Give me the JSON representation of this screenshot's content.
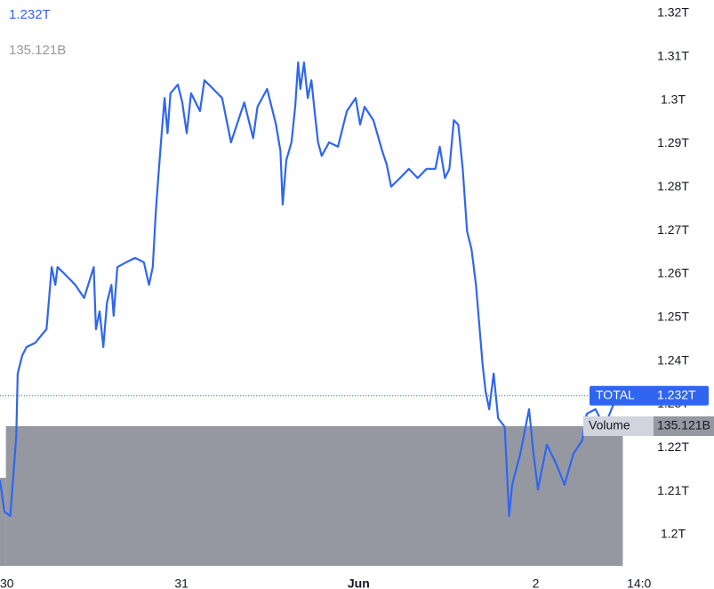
{
  "chart_data": {
    "type": "line",
    "xlim": [
      -0.6,
      87
    ],
    "xticks": [
      {
        "value": 0,
        "label": "30"
      },
      {
        "value": 24,
        "label": "31"
      },
      {
        "value": 48,
        "label": "Jun"
      },
      {
        "value": 72,
        "label": "2"
      },
      {
        "value": 86,
        "label": "14:0"
      }
    ],
    "ylim": [
      1.2,
      1.32
    ],
    "yticks": [
      {
        "value": 1.2,
        "label": "1.2T"
      },
      {
        "value": 1.21,
        "label": "1.21T"
      },
      {
        "value": 1.22,
        "label": "1.22T"
      },
      {
        "value": 1.23,
        "label": "1.23T"
      },
      {
        "value": 1.24,
        "label": "1.24T"
      },
      {
        "value": 1.25,
        "label": "1.25T"
      },
      {
        "value": 1.26,
        "label": "1.26T"
      },
      {
        "value": 1.27,
        "label": "1.27T"
      },
      {
        "value": 1.28,
        "label": "1.28T"
      },
      {
        "value": 1.29,
        "label": "1.29T"
      },
      {
        "value": 1.3,
        "label": "1.3T"
      },
      {
        "value": 1.31,
        "label": "1.31T"
      },
      {
        "value": 1.32,
        "label": "1.32T"
      }
    ],
    "series": [
      {
        "name": "TOTAL",
        "color": "#2f66f0",
        "last_label": "1.232T",
        "x": [
          -0.6,
          0,
          0.8,
          1.6,
          1.8,
          2.4,
          3.0,
          4.2,
          5.2,
          5.7,
          6.0,
          6.4,
          6.9,
          7.2,
          8.4,
          9.6,
          10.8,
          12.1,
          12.4,
          12.9,
          13.4,
          13.9,
          14.5,
          14.8,
          15.3,
          16.5,
          17.7,
          18.9,
          19.6,
          20.1,
          20.5,
          20.8,
          21.3,
          21.7,
          22.1,
          22.5,
          23.5,
          24.1,
          24.7,
          25.3,
          26.5,
          27.1,
          28.3,
          29.5,
          30.7,
          31.9,
          32.5,
          33.7,
          34.3,
          35.6,
          36.8,
          37.4,
          37.7,
          38.2,
          38.9,
          39.4,
          39.8,
          40.1,
          40.6,
          41.1,
          41.6,
          42.1,
          42.5,
          43.0,
          44.0,
          45.2,
          46.4,
          47.6,
          48.2,
          48.8,
          50.0,
          51.2,
          51.8,
          52.4,
          53.6,
          54.8,
          56.0,
          57.2,
          58.4,
          59.0,
          59.7,
          60.3,
          60.9,
          61.5,
          62.1,
          62.7,
          63.3,
          63.9,
          64.5,
          64.8,
          65.2,
          65.7,
          66.3,
          66.9,
          67.8,
          68.1,
          68.4,
          68.8,
          69.9,
          71.1,
          71.7,
          72.3,
          73.5,
          74.7,
          75.9,
          77.1,
          78.3,
          78.9,
          80.1,
          81.3,
          82.5,
          83.8
        ],
        "values": [
          1.2125,
          1.2053,
          1.2043,
          1.2227,
          1.2371,
          1.2412,
          1.2432,
          1.2442,
          1.2463,
          1.2473,
          1.2534,
          1.2616,
          1.2575,
          1.2616,
          1.2596,
          1.2575,
          1.2545,
          1.2616,
          1.2473,
          1.2514,
          1.2432,
          1.2534,
          1.2575,
          1.2504,
          1.2616,
          1.2627,
          1.2637,
          1.2627,
          1.2575,
          1.2616,
          1.2739,
          1.2811,
          1.2924,
          1.3005,
          1.2924,
          1.3016,
          1.3036,
          1.2995,
          1.2924,
          1.3016,
          1.2975,
          1.3046,
          1.3026,
          1.3005,
          1.2903,
          1.2964,
          1.2995,
          1.2913,
          1.2985,
          1.3026,
          1.2944,
          1.2883,
          1.276,
          1.2862,
          1.2903,
          1.2985,
          1.3087,
          1.3026,
          1.3087,
          1.3005,
          1.3046,
          1.2964,
          1.2903,
          1.2872,
          1.2903,
          1.2893,
          1.2975,
          1.3005,
          1.2944,
          1.2985,
          1.2954,
          1.2883,
          1.2852,
          1.2801,
          1.2821,
          1.2842,
          1.2821,
          1.2842,
          1.2842,
          1.2893,
          1.2821,
          1.2842,
          1.2954,
          1.2944,
          1.2842,
          1.2698,
          1.2657,
          1.2575,
          1.2452,
          1.2391,
          1.233,
          1.2289,
          1.2371,
          1.2268,
          1.2248,
          1.2145,
          1.2043,
          1.2115,
          1.2186,
          1.2289,
          1.2186,
          1.2104,
          1.2207,
          1.2166,
          1.2115,
          1.2186,
          1.2217,
          1.2278,
          1.2289,
          1.2248,
          1.2299,
          1.232
        ]
      }
    ],
    "volume": {
      "name": "Volume",
      "color": "#9598a1",
      "last_label": "135.121B",
      "bins": [
        -0.6,
        0.2,
        83.8
      ],
      "values": [
        85.2,
        135.121
      ]
    }
  }
}
